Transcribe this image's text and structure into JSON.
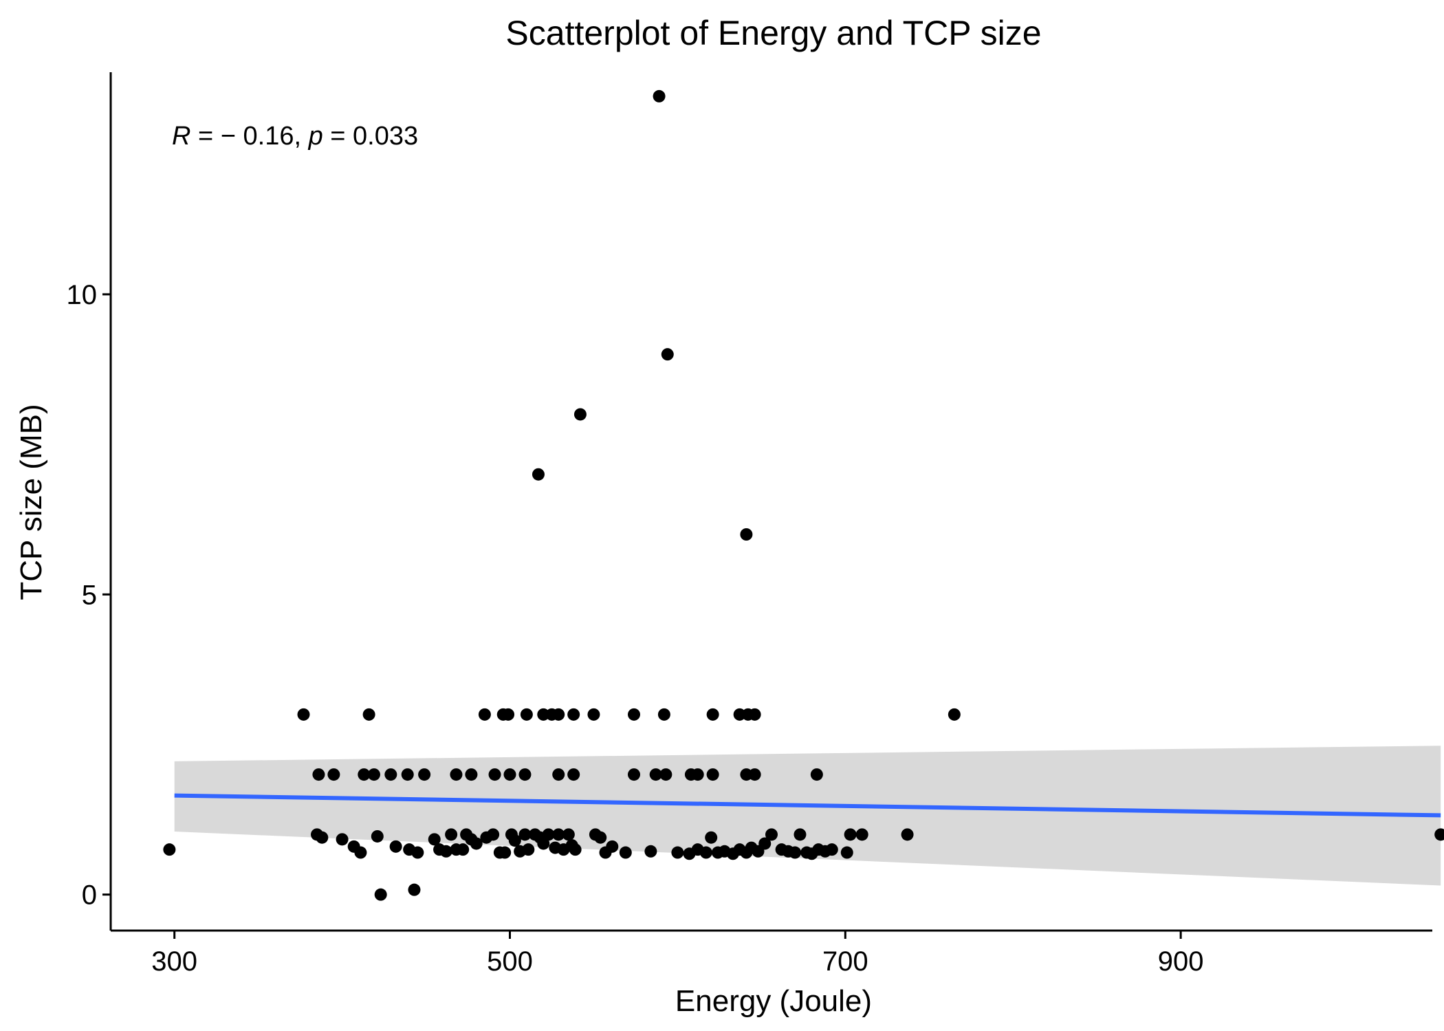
{
  "chart_data": {
    "type": "scatter",
    "title": "Scatterplot of Energy and TCP size",
    "xlabel": "Energy (Joule)",
    "ylabel": "TCP size (MB)",
    "xlim": [
      262,
      1050
    ],
    "ylim": [
      -0.6,
      13.7
    ],
    "x_ticks": [
      300,
      500,
      700,
      900
    ],
    "x_tick_labels": [
      "300",
      "500",
      "700",
      "900"
    ],
    "y_ticks": [
      0,
      5,
      10
    ],
    "y_tick_labels": [
      "0",
      "5",
      "10"
    ],
    "grid": false,
    "legend": "none",
    "annotation": {
      "r_symbol": "R",
      "r_text": " = − 0.16, ",
      "p_symbol": "p",
      "p_text": " = 0.033"
    },
    "colors": {
      "points": "#000000",
      "fit_line": "#3366FF",
      "confidence_band": "#d9d9d9",
      "axis": "#000000"
    },
    "regression": {
      "x": [
        300,
        1055
      ],
      "y": [
        1.65,
        1.32
      ],
      "ci_lower": [
        1.05,
        0.15
      ],
      "ci_upper": [
        2.22,
        2.48
      ]
    },
    "points": [
      [
        297,
        0.75
      ],
      [
        377,
        3
      ],
      [
        416,
        3
      ],
      [
        385,
        1
      ],
      [
        388,
        0.95
      ],
      [
        400,
        0.92
      ],
      [
        407,
        0.8
      ],
      [
        411,
        0.7
      ],
      [
        421,
        0.97
      ],
      [
        423,
        0
      ],
      [
        432,
        0.8
      ],
      [
        440,
        0.75
      ],
      [
        443,
        0.08
      ],
      [
        445,
        0.7
      ],
      [
        455,
        0.92
      ],
      [
        458,
        0.75
      ],
      [
        462,
        0.72
      ],
      [
        465,
        1
      ],
      [
        468,
        0.75
      ],
      [
        472,
        0.75
      ],
      [
        474,
        1
      ],
      [
        477,
        0.92
      ],
      [
        480,
        0.85
      ],
      [
        486,
        0.95
      ],
      [
        490,
        1
      ],
      [
        494,
        0.7
      ],
      [
        497,
        0.7
      ],
      [
        501,
        1
      ],
      [
        503,
        0.9
      ],
      [
        506,
        0.72
      ],
      [
        509,
        1
      ],
      [
        511,
        0.75
      ],
      [
        515,
        1
      ],
      [
        518,
        0.95
      ],
      [
        520,
        0.85
      ],
      [
        523,
        1
      ],
      [
        527,
        0.78
      ],
      [
        529,
        1
      ],
      [
        532,
        0.75
      ],
      [
        535,
        1
      ],
      [
        537,
        0.82
      ],
      [
        539,
        0.75
      ],
      [
        551,
        1
      ],
      [
        554,
        0.95
      ],
      [
        557,
        0.7
      ],
      [
        561,
        0.8
      ],
      [
        569,
        0.7
      ],
      [
        584,
        0.72
      ],
      [
        600,
        0.7
      ],
      [
        607,
        0.68
      ],
      [
        612,
        0.75
      ],
      [
        617,
        0.7
      ],
      [
        620,
        0.95
      ],
      [
        624,
        0.7
      ],
      [
        628,
        0.72
      ],
      [
        633,
        0.68
      ],
      [
        637,
        0.75
      ],
      [
        641,
        0.7
      ],
      [
        644,
        0.78
      ],
      [
        648,
        0.72
      ],
      [
        652,
        0.85
      ],
      [
        656,
        1
      ],
      [
        662,
        0.75
      ],
      [
        666,
        0.72
      ],
      [
        670,
        0.7
      ],
      [
        673,
        1
      ],
      [
        677,
        0.7
      ],
      [
        680,
        0.68
      ],
      [
        684,
        0.75
      ],
      [
        688,
        0.72
      ],
      [
        692,
        0.75
      ],
      [
        701,
        0.7
      ],
      [
        703,
        1
      ],
      [
        710,
        1
      ],
      [
        737,
        1
      ],
      [
        1055,
        1
      ],
      [
        386,
        2
      ],
      [
        395,
        2
      ],
      [
        413,
        2
      ],
      [
        419,
        2
      ],
      [
        429,
        2
      ],
      [
        439,
        2
      ],
      [
        449,
        2
      ],
      [
        468,
        2
      ],
      [
        477,
        2
      ],
      [
        491,
        2
      ],
      [
        500,
        2
      ],
      [
        509,
        2
      ],
      [
        529,
        2
      ],
      [
        538,
        2
      ],
      [
        574,
        2
      ],
      [
        587,
        2
      ],
      [
        593,
        2
      ],
      [
        608,
        2
      ],
      [
        612,
        2
      ],
      [
        621,
        2
      ],
      [
        641,
        2
      ],
      [
        646,
        2
      ],
      [
        683,
        2
      ],
      [
        485,
        3
      ],
      [
        496,
        3
      ],
      [
        499,
        3
      ],
      [
        510,
        3
      ],
      [
        520,
        3
      ],
      [
        525,
        3
      ],
      [
        529,
        3
      ],
      [
        538,
        3
      ],
      [
        550,
        3
      ],
      [
        574,
        3
      ],
      [
        592,
        3
      ],
      [
        621,
        3
      ],
      [
        637,
        3
      ],
      [
        642,
        3
      ],
      [
        646,
        3
      ],
      [
        765,
        3
      ],
      [
        589,
        13.3
      ],
      [
        594,
        9
      ],
      [
        542,
        8
      ],
      [
        517,
        7
      ],
      [
        641,
        6
      ]
    ]
  }
}
